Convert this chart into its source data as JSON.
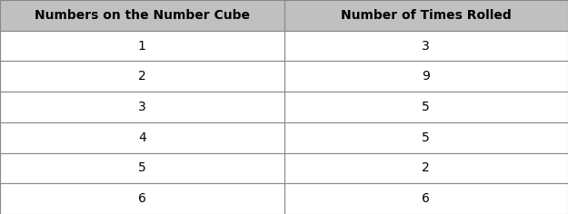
{
  "col1_header": "Numbers on the Number Cube",
  "col2_header": "Number of Times Rolled",
  "rows": [
    [
      "1",
      "3"
    ],
    [
      "2",
      "9"
    ],
    [
      "3",
      "5"
    ],
    [
      "4",
      "5"
    ],
    [
      "5",
      "2"
    ],
    [
      "6",
      "6"
    ]
  ],
  "header_bg": "#c0c0c0",
  "row_bg": "#ffffff",
  "border_color": "#888888",
  "text_color": "#000000",
  "header_fontsize": 10,
  "cell_fontsize": 10,
  "fig_bg": "#ffffff",
  "fig_width": 6.25,
  "fig_height": 2.36,
  "dpi": 100
}
